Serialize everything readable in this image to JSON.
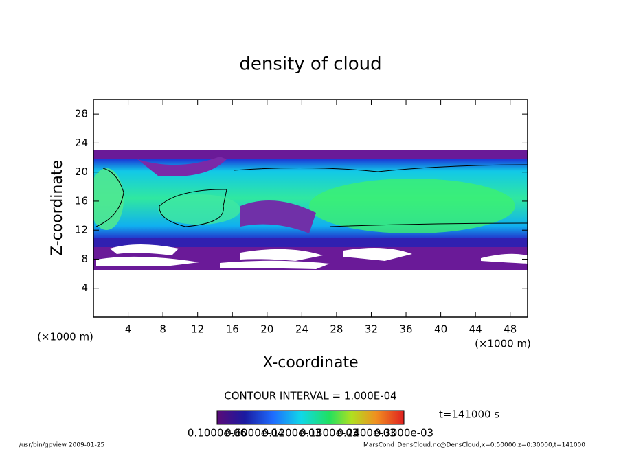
{
  "chart_data": {
    "type": "contour",
    "title": "density of cloud",
    "x_label": "X-coordinate",
    "y_label": "Z-coordinate",
    "x_unit": "(×1000 m)",
    "y_unit": "(×1000 m)",
    "xlim": [
      0,
      50
    ],
    "xticks": [
      4,
      8,
      12,
      16,
      20,
      24,
      28,
      32,
      36,
      40,
      44,
      48
    ],
    "ylim": [
      0,
      30
    ],
    "yticks": [
      4,
      8,
      12,
      16,
      20,
      24,
      28
    ],
    "contour_interval": "CONTOUR INTERVAL = 1.000E-04",
    "time_label": "t=141000 s",
    "colorbar_labels": [
      "0.1000e-06",
      "0.6000e-04",
      "0.1200e-03",
      "0.1800e-03",
      "0.2400e-03",
      "0.3000e-03"
    ],
    "footer_left": "/usr/bin/gpview  2009-01-25",
    "footer_right": "MarsCond_DensCloud.nc@DensCloud,x=0:50000,z=0:30000,t=141000"
  }
}
